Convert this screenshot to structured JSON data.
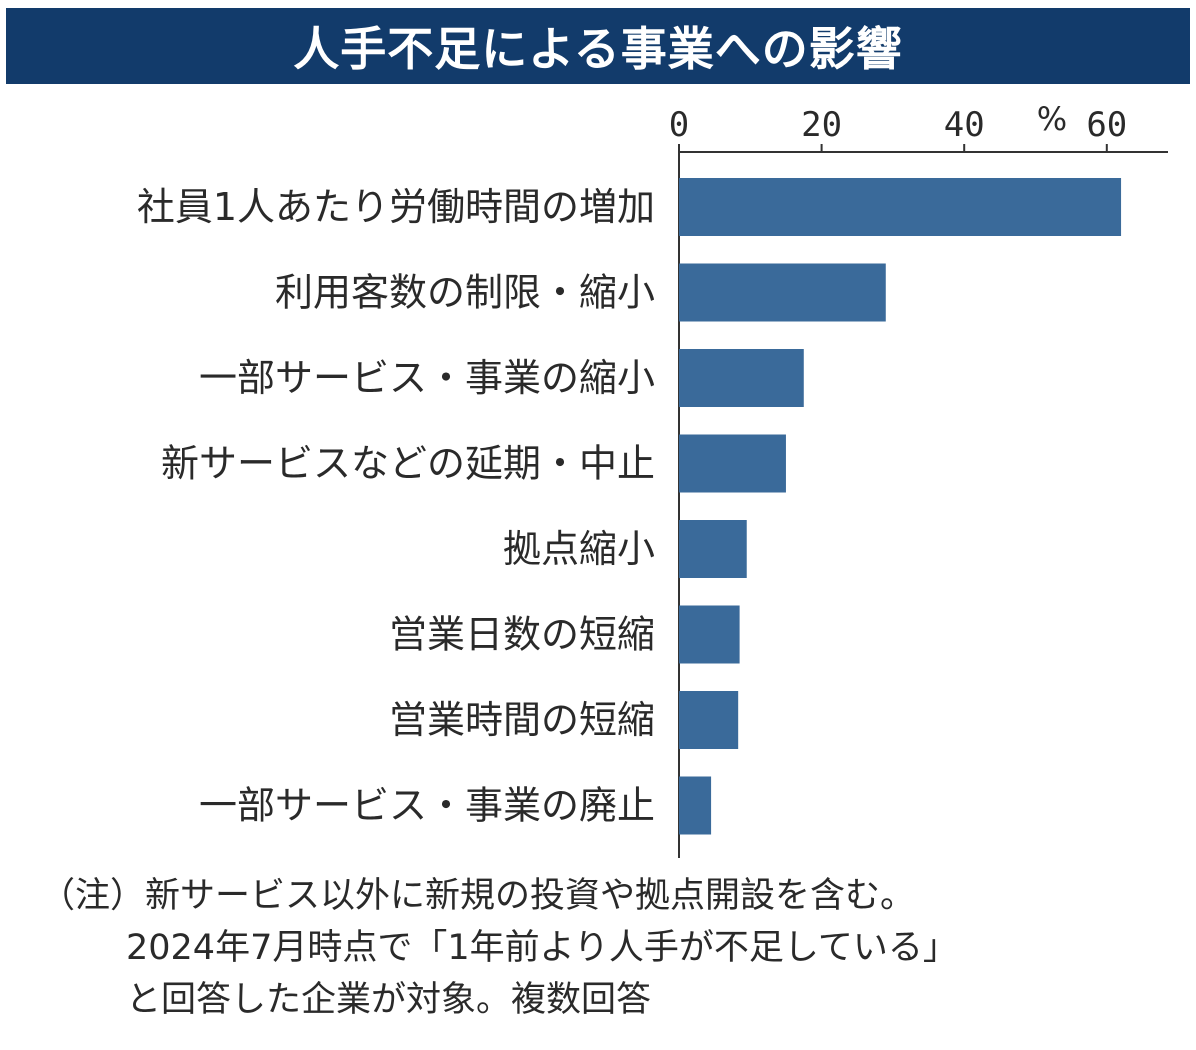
{
  "title": "人手不足による事業への影響",
  "colors": {
    "title_bg": "#123b6b",
    "bar": "#3a6a9a",
    "axis": "#333333"
  },
  "chart_data": {
    "type": "bar",
    "orientation": "horizontal",
    "unit": "%",
    "xlim": [
      0,
      70
    ],
    "ticks": [
      0,
      20,
      40,
      60
    ],
    "tick_labels": [
      "0",
      "20",
      "40",
      "60"
    ],
    "categories": [
      "社員1人あたり労働時間の増加",
      "利用客数の制限・縮小",
      "一部サービス・事業の縮小",
      "新サービスなどの延期・中止",
      "拠点縮小",
      "営業日数の短縮",
      "営業時間の短縮",
      "一部サービス・事業の廃止"
    ],
    "values": [
      62,
      29,
      17.5,
      15,
      9.5,
      8.5,
      8.3,
      4.5
    ]
  },
  "notes": [
    "（注）新サービス以外に新規の投資や拠点開設を含む。",
    "2024年7月時点で「1年前より人手が不足している」",
    "と回答した企業が対象。複数回答"
  ]
}
